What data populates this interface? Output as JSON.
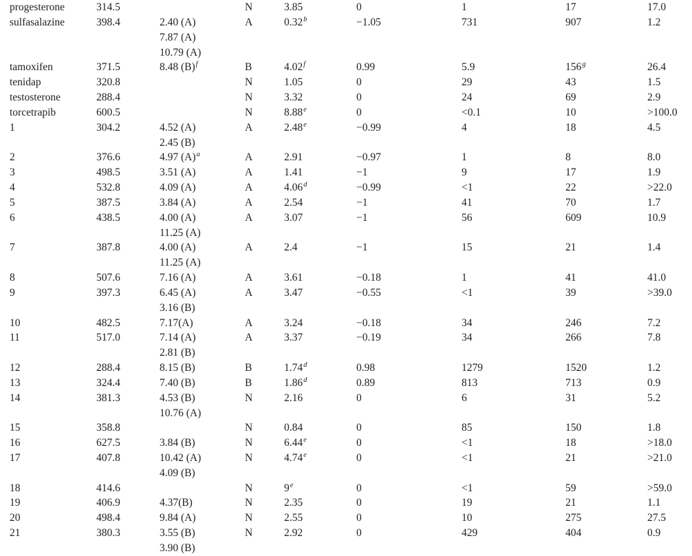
{
  "page": {
    "background_color": "#ffffff",
    "text_color": "#212121"
  },
  "table": {
    "description_note": "",
    "rows": [
      [
        "progesterone",
        "314.5",
        "",
        "N",
        "3.85",
        "0",
        "1",
        "17",
        "17.0"
      ],
      [
        "sulfasalazine",
        "398.4",
        "2.40 (A)",
        "A",
        {
          "t": "0.32",
          "sup": "b"
        },
        "−1.05",
        "731",
        "907",
        "1.2"
      ],
      [
        "",
        "",
        "7.87 (A)",
        "",
        "",
        "",
        "",
        "",
        ""
      ],
      [
        "",
        "",
        "10.79 (A)",
        "",
        "",
        "",
        "",
        "",
        ""
      ],
      [
        "tamoxifen",
        "371.5",
        {
          "t": "8.48 (B)",
          "sup": "f"
        },
        "B",
        {
          "t": "4.02",
          "sup": "f"
        },
        "0.99",
        "5.9",
        {
          "t": "156",
          "sup": "g"
        },
        "26.4"
      ],
      [
        "tenidap",
        "320.8",
        "",
        "N",
        "1.05",
        "0",
        "29",
        "43",
        "1.5"
      ],
      [
        "testosterone",
        "288.4",
        "",
        "N",
        "3.32",
        "0",
        "24",
        "69",
        "2.9"
      ],
      [
        "torcetrapib",
        "600.5",
        "",
        "N",
        {
          "t": "8.88",
          "sup": "e"
        },
        "0",
        "<0.1",
        "10",
        ">100.0"
      ],
      [
        "1",
        "304.2",
        "4.52 (A)",
        "A",
        {
          "t": "2.48",
          "sup": "e"
        },
        "−0.99",
        "4",
        "18",
        "4.5"
      ],
      [
        "",
        "",
        "2.45 (B)",
        "",
        "",
        "",
        "",
        "",
        ""
      ],
      [
        "2",
        "376.6",
        {
          "t": "4.97 (A)",
          "sup": "a"
        },
        "A",
        "2.91",
        "−0.97",
        "1",
        "8",
        "8.0"
      ],
      [
        "3",
        "498.5",
        "3.51 (A)",
        "A",
        "1.41",
        "−1",
        "9",
        "17",
        "1.9"
      ],
      [
        "4",
        "532.8",
        "4.09 (A)",
        "A",
        {
          "t": "4.06",
          "sup": "d"
        },
        "−0.99",
        "<1",
        "22",
        ">22.0"
      ],
      [
        "5",
        "387.5",
        "3.84 (A)",
        "A",
        "2.54",
        "−1",
        "41",
        "70",
        "1.7"
      ],
      [
        "6",
        "438.5",
        "4.00 (A)",
        "A",
        "3.07",
        "−1",
        "56",
        "609",
        "10.9"
      ],
      [
        "",
        "",
        "11.25 (A)",
        "",
        "",
        "",
        "",
        "",
        ""
      ],
      [
        "7",
        "387.8",
        "4.00 (A)",
        "A",
        "2.4",
        "−1",
        "15",
        "21",
        "1.4"
      ],
      [
        "",
        "",
        "11.25 (A)",
        "",
        "",
        "",
        "",
        "",
        ""
      ],
      [
        "8",
        "507.6",
        "7.16 (A)",
        "A",
        "3.61",
        "−0.18",
        "1",
        "41",
        "41.0"
      ],
      [
        "9",
        "397.3",
        "6.45 (A)",
        "A",
        "3.47",
        "−0.55",
        "<1",
        "39",
        ">39.0"
      ],
      [
        "",
        "",
        "3.16 (B)",
        "",
        "",
        "",
        "",
        "",
        ""
      ],
      [
        "10",
        "482.5",
        "7.17(A)",
        "A",
        "3.24",
        "−0.18",
        "34",
        "246",
        "7.2"
      ],
      [
        "11",
        "517.0",
        "7.14 (A)",
        "A",
        "3.37",
        "−0.19",
        "34",
        "266",
        "7.8"
      ],
      [
        "",
        "",
        "2.81 (B)",
        "",
        "",
        "",
        "",
        "",
        ""
      ],
      [
        "12",
        "288.4",
        "8.15 (B)",
        "B",
        {
          "t": "1.74",
          "sup": "d"
        },
        "0.98",
        "1279",
        "1520",
        "1.2"
      ],
      [
        "13",
        "324.4",
        "7.40 (B)",
        "B",
        {
          "t": "1.86",
          "sup": "d"
        },
        "0.89",
        "813",
        "713",
        "0.9"
      ],
      [
        "14",
        "381.3",
        "4.53 (B)",
        "N",
        "2.16",
        "0",
        "6",
        "31",
        "5.2"
      ],
      [
        "",
        "",
        "10.76 (A)",
        "",
        "",
        "",
        "",
        "",
        ""
      ],
      [
        "15",
        "358.8",
        "",
        "N",
        "0.84",
        "0",
        "85",
        "150",
        "1.8"
      ],
      [
        "16",
        "627.5",
        "3.84 (B)",
        "N",
        {
          "t": "6.44",
          "sup": "e"
        },
        "0",
        "<1",
        "18",
        ">18.0"
      ],
      [
        "17",
        "407.8",
        "10.42 (A)",
        "N",
        {
          "t": "4.74",
          "sup": "e"
        },
        "0",
        "<1",
        "21",
        ">21.0"
      ],
      [
        "",
        "",
        "4.09 (B)",
        "",
        "",
        "",
        "",
        "",
        ""
      ],
      [
        "18",
        "414.6",
        "",
        "N",
        {
          "t": "9",
          "sup": "e"
        },
        "0",
        "<1",
        "59",
        ">59.0"
      ],
      [
        "19",
        "406.9",
        "4.37(B)",
        "N",
        "2.35",
        "0",
        "19",
        "21",
        "1.1"
      ],
      [
        "20",
        "498.4",
        "9.84 (A)",
        "N",
        "2.55",
        "0",
        "10",
        "275",
        "27.5"
      ],
      [
        "21",
        "380.3",
        "3.55 (B)",
        "N",
        "2.92",
        "0",
        "429",
        "404",
        "0.9"
      ],
      [
        "",
        "",
        "3.90 (B)",
        "",
        "",
        "",
        "",
        "",
        ""
      ]
    ]
  }
}
